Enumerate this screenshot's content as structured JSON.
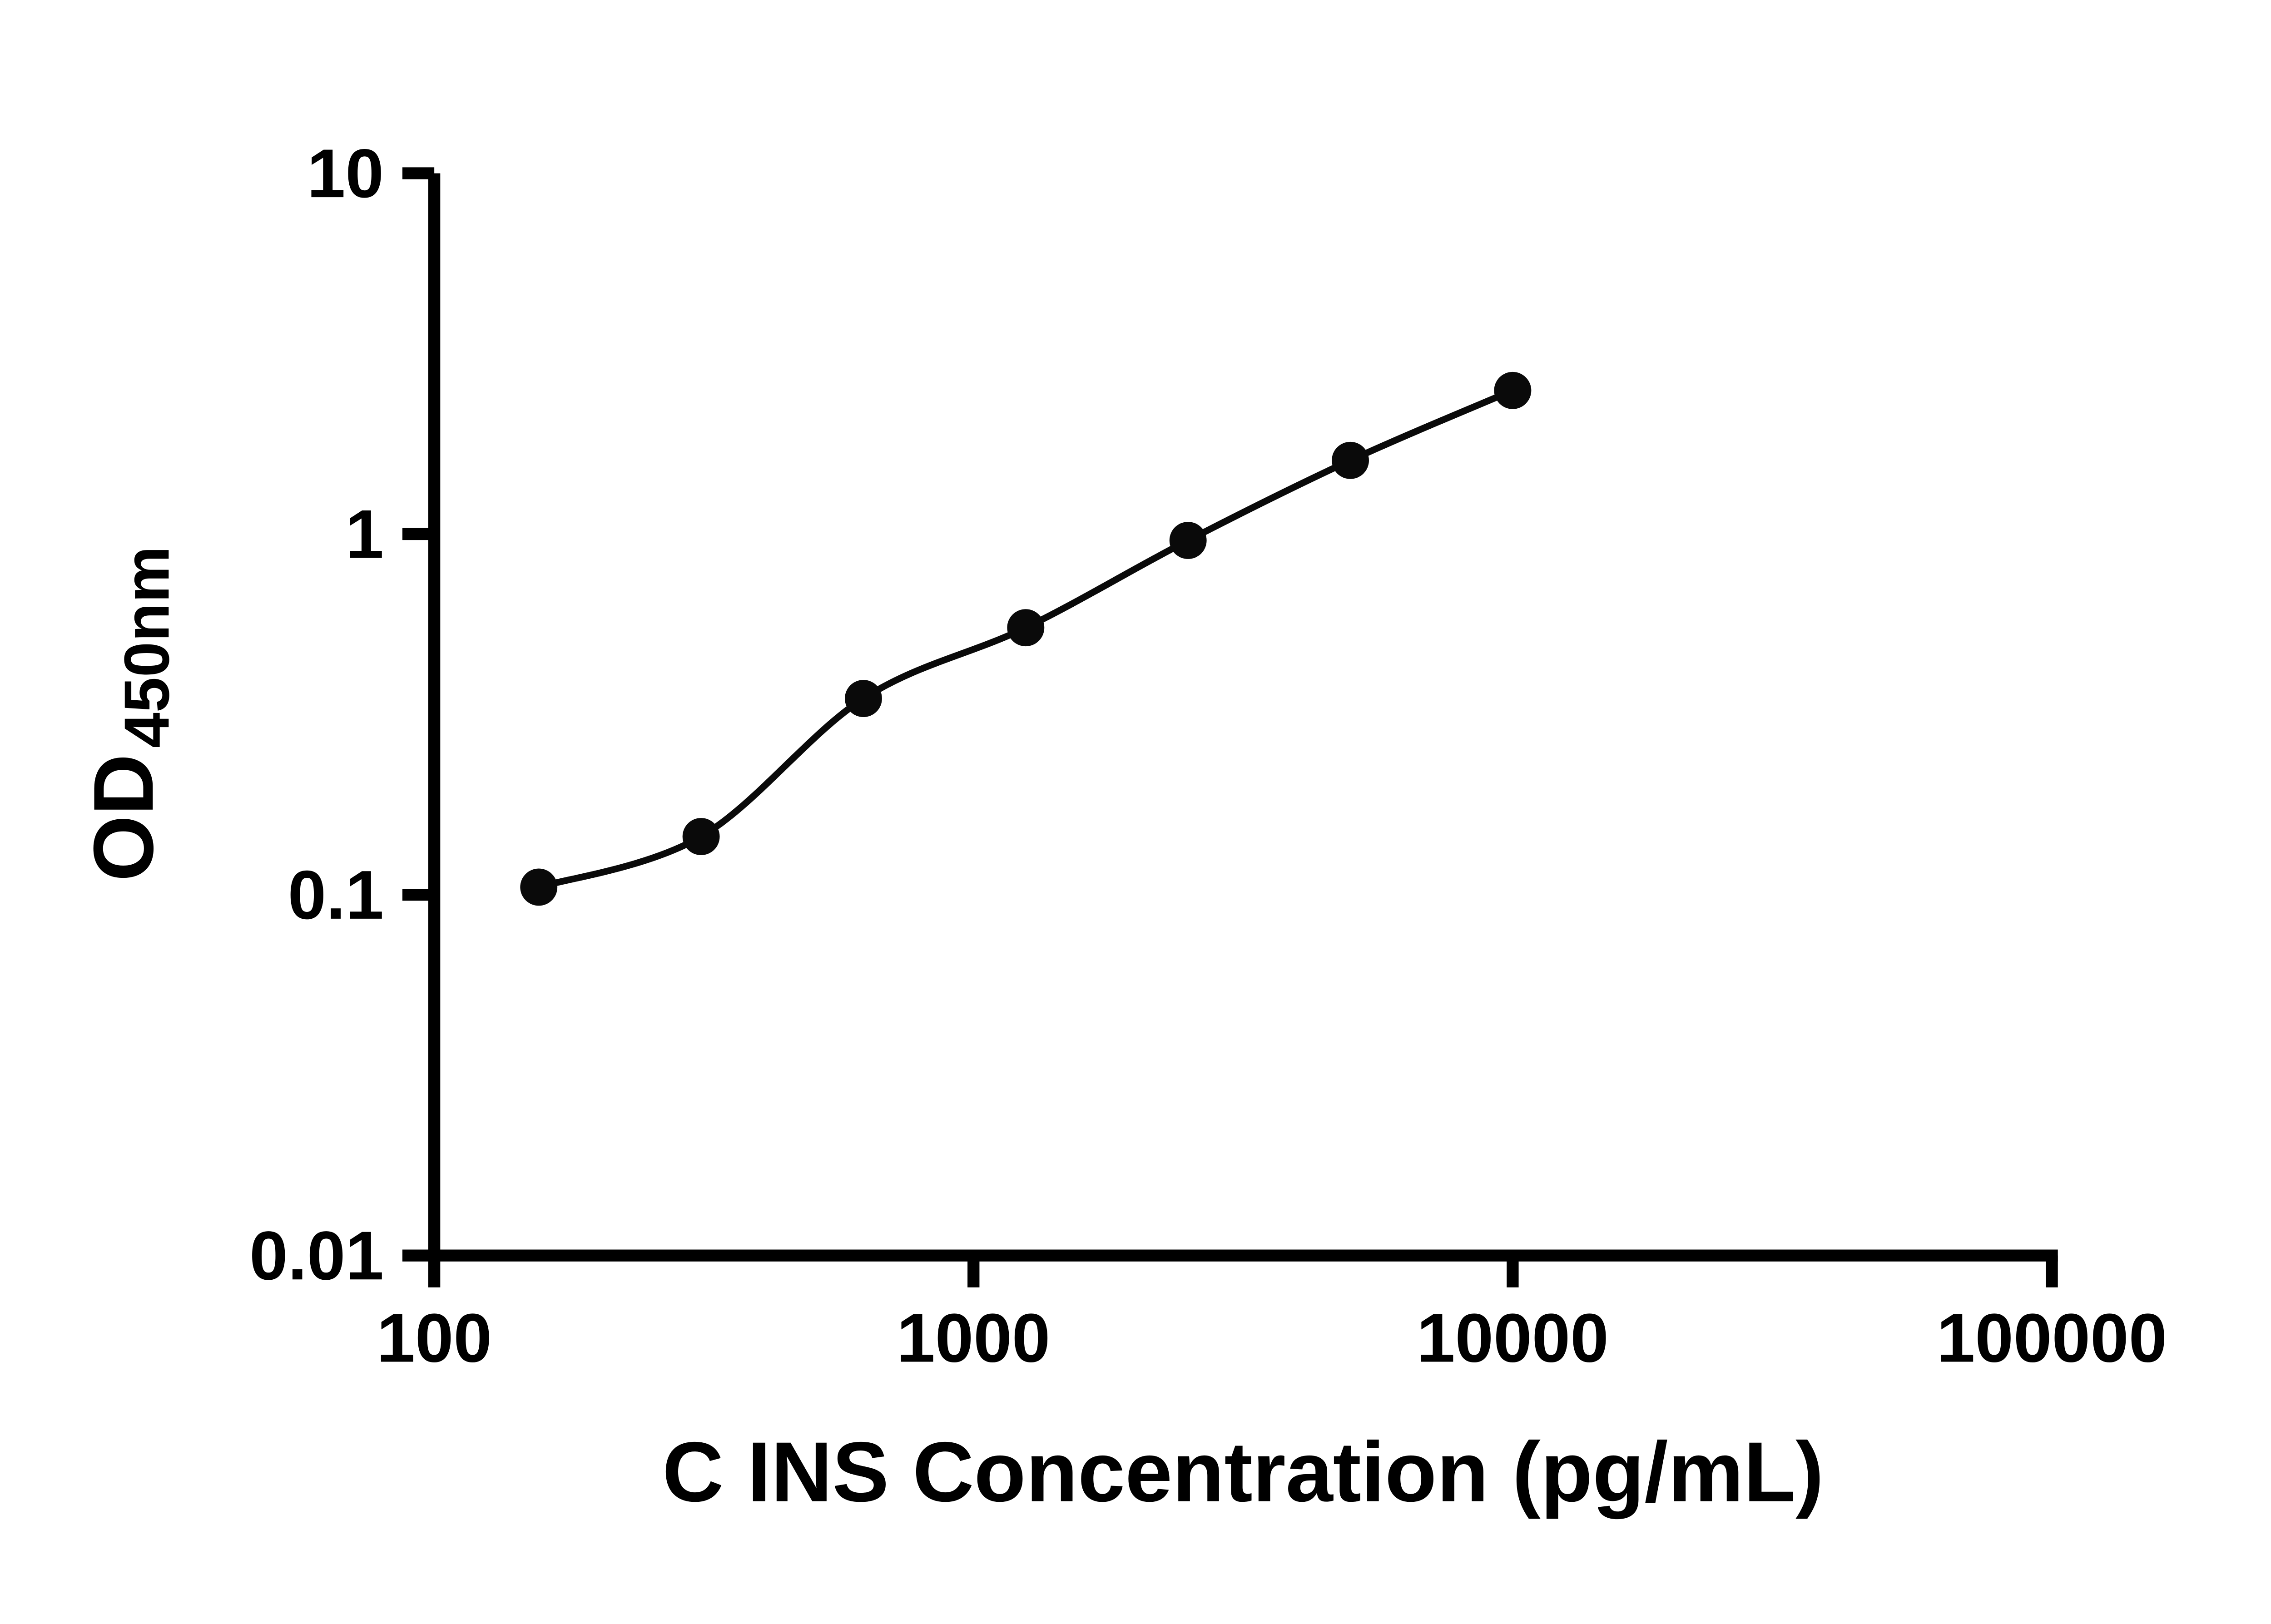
{
  "colors": {
    "background": "#ffffff",
    "axis": "#000000",
    "marker": "#0a0a0a",
    "curve": "#0a0a0a"
  },
  "chart_data": {
    "type": "scatter",
    "title": "",
    "xlabel": "C INS Concentration (pg/mL)",
    "ylabel": "OD",
    "ylabel_subscript": "450nm",
    "x_scale": "log",
    "y_scale": "log",
    "xlim": [
      100,
      100000
    ],
    "ylim": [
      0.01,
      10
    ],
    "x_ticks": [
      100,
      1000,
      10000,
      100000
    ],
    "x_tick_labels": [
      "100",
      "1000",
      "10000",
      "100000"
    ],
    "y_ticks": [
      0.01,
      0.1,
      1,
      10
    ],
    "y_tick_labels": [
      "0.01",
      "0.1",
      "1",
      "10"
    ],
    "grid": false,
    "legend": false,
    "series": [
      {
        "name": "standard-curve",
        "marker": "filled-circle",
        "line": "smooth-fit",
        "points": [
          {
            "x": 156.25,
            "y": 0.105
          },
          {
            "x": 312.5,
            "y": 0.145
          },
          {
            "x": 625,
            "y": 0.35
          },
          {
            "x": 1250,
            "y": 0.55
          },
          {
            "x": 2500,
            "y": 0.96
          },
          {
            "x": 5000,
            "y": 1.6
          },
          {
            "x": 10000,
            "y": 2.5
          }
        ]
      }
    ]
  }
}
